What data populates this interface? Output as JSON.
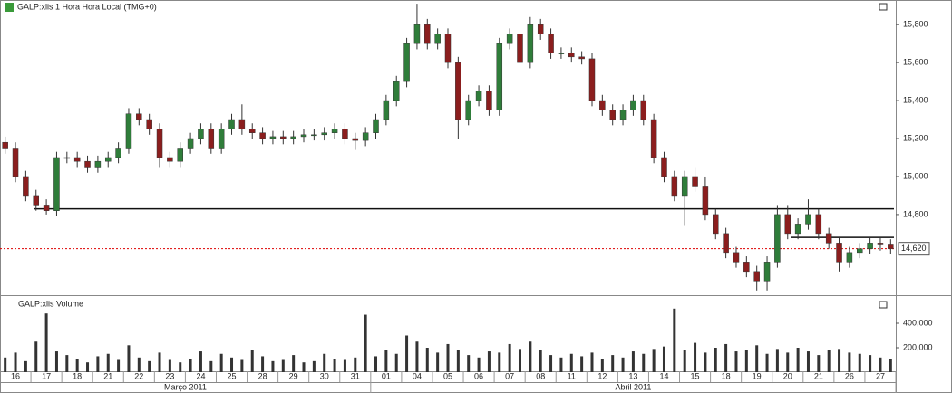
{
  "chart_data": {
    "type": "candlestick",
    "title": "GALP:xlis 1 Hora Hora Local (TMG+0)",
    "volume_title": "GALP:xlis Volume",
    "categories": [
      "16",
      "17",
      "18",
      "21",
      "22",
      "23",
      "24",
      "25",
      "28",
      "29",
      "30",
      "31",
      "01",
      "04",
      "05",
      "06",
      "07",
      "08",
      "11",
      "12",
      "13",
      "14",
      "15",
      "18",
      "19",
      "20",
      "21",
      "26",
      "27"
    ],
    "months": [
      {
        "label": "Março 2011",
        "days": 12
      },
      {
        "label": "Abril 2011",
        "days": 17
      }
    ],
    "open": [
      15180,
      15150,
      15000,
      14900,
      14850,
      14820,
      15100,
      15100,
      15080,
      15050,
      15080,
      15100,
      15150,
      15330,
      15300,
      15250,
      15100,
      15080,
      15150,
      15200,
      15250,
      15150,
      15250,
      15300,
      15250,
      15230,
      15200,
      15210,
      15200,
      15210,
      15220,
      15220,
      15230,
      15250,
      15200,
      15190,
      15230,
      15300,
      15400,
      15500,
      15700,
      15800,
      15700,
      15750,
      15600,
      15300,
      15400,
      15450,
      15350,
      15700,
      15750,
      15600,
      15800,
      15750,
      15650,
      15650,
      15630,
      15620,
      15400,
      15350,
      15300,
      15350,
      15400,
      15300,
      15100,
      15000,
      14900,
      15000,
      14950,
      14800,
      14700,
      14600,
      14550,
      14500,
      14450,
      14550,
      14800,
      14700,
      14750,
      14800,
      14700,
      14650,
      14550,
      14600,
      14620,
      14650,
      14640
    ],
    "high": [
      15210,
      15180,
      15030,
      14930,
      14880,
      15130,
      15130,
      15130,
      15110,
      15110,
      15130,
      15180,
      15360,
      15360,
      15330,
      15280,
      15130,
      15180,
      15230,
      15280,
      15280,
      15280,
      15330,
      15380,
      15280,
      15260,
      15240,
      15240,
      15240,
      15250,
      15250,
      15260,
      15280,
      15280,
      15230,
      15260,
      15330,
      15430,
      15530,
      15730,
      15910,
      15830,
      15780,
      15780,
      15630,
      15430,
      15480,
      15480,
      15730,
      15780,
      15780,
      15840,
      15830,
      15780,
      15680,
      15680,
      15660,
      15650,
      15430,
      15380,
      15380,
      15430,
      15430,
      15330,
      15130,
      15030,
      15030,
      15050,
      15000,
      14830,
      14730,
      14630,
      14580,
      14530,
      14580,
      14850,
      14850,
      14780,
      14880,
      14830,
      14730,
      14680,
      14630,
      14650,
      14680,
      14680,
      14670
    ],
    "low": [
      15120,
      14970,
      14870,
      14820,
      14800,
      14790,
      15070,
      15050,
      15020,
      15020,
      15050,
      15070,
      15120,
      15270,
      15220,
      15050,
      15050,
      15050,
      15120,
      15170,
      15120,
      15120,
      15220,
      15220,
      15200,
      15170,
      15170,
      15170,
      15170,
      15180,
      15190,
      15190,
      15200,
      15170,
      15140,
      15160,
      15200,
      15270,
      15370,
      15470,
      15670,
      15670,
      15670,
      15570,
      15200,
      15270,
      15370,
      15320,
      15320,
      15670,
      15570,
      15570,
      15720,
      15620,
      15620,
      15600,
      15590,
      15370,
      15320,
      15270,
      15270,
      15320,
      15270,
      15070,
      14970,
      14870,
      14740,
      14920,
      14770,
      14670,
      14570,
      14520,
      14470,
      14400,
      14400,
      14520,
      14670,
      14670,
      14720,
      14670,
      14620,
      14500,
      14520,
      14570,
      14590,
      14610,
      14590
    ],
    "close": [
      15150,
      15000,
      14900,
      14850,
      14820,
      15100,
      15100,
      15080,
      15050,
      15080,
      15100,
      15150,
      15330,
      15300,
      15250,
      15100,
      15080,
      15150,
      15200,
      15250,
      15150,
      15250,
      15300,
      15250,
      15230,
      15200,
      15210,
      15200,
      15210,
      15220,
      15220,
      15230,
      15250,
      15200,
      15190,
      15230,
      15300,
      15400,
      15500,
      15700,
      15800,
      15700,
      15750,
      15600,
      15300,
      15400,
      15450,
      15350,
      15700,
      15750,
      15600,
      15800,
      15750,
      15650,
      15650,
      15630,
      15620,
      15400,
      15350,
      15300,
      15350,
      15400,
      15300,
      15100,
      15000,
      14900,
      15000,
      14950,
      14800,
      14700,
      14600,
      14550,
      14500,
      14450,
      14550,
      14800,
      14700,
      14750,
      14800,
      14700,
      14650,
      14550,
      14600,
      14620,
      14650,
      14640,
      14620
    ],
    "volume": [
      120000,
      160000,
      90000,
      250000,
      480000,
      170000,
      140000,
      110000,
      80000,
      130000,
      150000,
      100000,
      220000,
      120000,
      90000,
      160000,
      100000,
      80000,
      110000,
      170000,
      90000,
      150000,
      120000,
      100000,
      180000,
      130000,
      90000,
      100000,
      140000,
      80000,
      90000,
      150000,
      110000,
      100000,
      120000,
      470000,
      130000,
      180000,
      150000,
      300000,
      250000,
      200000,
      160000,
      230000,
      180000,
      140000,
      120000,
      170000,
      160000,
      230000,
      190000,
      250000,
      180000,
      140000,
      120000,
      150000,
      130000,
      160000,
      110000,
      140000,
      120000,
      170000,
      150000,
      190000,
      210000,
      520000,
      180000,
      240000,
      160000,
      200000,
      230000,
      170000,
      180000,
      220000,
      150000,
      190000,
      160000,
      200000,
      170000,
      140000,
      180000,
      190000,
      160000,
      150000,
      140000,
      120000,
      110000
    ],
    "up_color": "#2f7d3a",
    "down_color": "#8b1e1e",
    "ylim": [
      14380,
      15920
    ],
    "yticks": [
      {
        "value": 15800,
        "label": "15,800"
      },
      {
        "value": 15600,
        "label": "15,600"
      },
      {
        "value": 15400,
        "label": "15,400"
      },
      {
        "value": 15200,
        "label": "15,200"
      },
      {
        "value": 15000,
        "label": "15,000"
      },
      {
        "value": 14800,
        "label": "14,800"
      }
    ],
    "volume_ylim": [
      0,
      600000
    ],
    "volume_yticks": [
      {
        "value": 400000,
        "label": "400,000"
      },
      {
        "value": 200000,
        "label": "200,000"
      }
    ],
    "levels": [
      14830,
      14680
    ],
    "last_price": {
      "value": 14620,
      "label": "14,620"
    }
  }
}
